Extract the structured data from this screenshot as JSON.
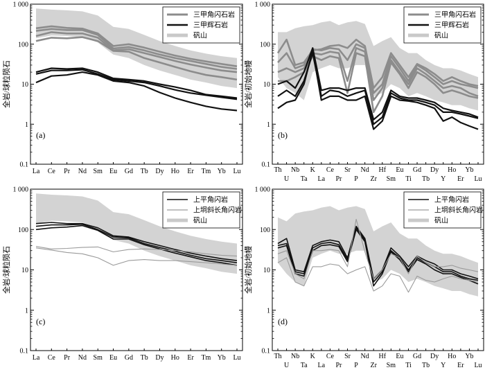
{
  "chart_data": [
    {
      "type": "line",
      "panel_label": "(a)",
      "ylabel": "全岩/球粒陨石",
      "yscale": "log",
      "ylim": [
        0.1,
        1000
      ],
      "yticks": [
        "0.1",
        "1",
        "10",
        "100",
        "1 000"
      ],
      "categories": [
        "La",
        "Ce",
        "Pr",
        "Nd",
        "Sm",
        "Eu",
        "Gd",
        "Tb",
        "Dy",
        "Ho",
        "Er",
        "Tm",
        "Yb",
        "Lu"
      ],
      "band": {
        "name": "矾山",
        "upper": [
          780,
          730,
          700,
          660,
          520,
          270,
          240,
          170,
          120,
          90,
          70,
          58,
          50,
          45
        ],
        "lower": [
          140,
          165,
          160,
          150,
          110,
          55,
          45,
          30,
          22,
          17,
          13,
          11,
          9,
          8
        ]
      },
      "series": [
        {
          "name": "三甲角闪石岩",
          "group": "gray",
          "values": [
            250,
            280,
            255,
            245,
            185,
            90,
            100,
            82,
            65,
            52,
            43,
            37,
            32,
            28
          ]
        },
        {
          "name": "",
          "group": "gray",
          "values": [
            215,
            240,
            225,
            225,
            170,
            78,
            85,
            70,
            55,
            45,
            38,
            32,
            27,
            24
          ]
        },
        {
          "name": "",
          "group": "gray",
          "values": [
            160,
            200,
            185,
            185,
            145,
            70,
            75,
            60,
            48,
            38,
            31,
            26,
            22,
            20
          ]
        },
        {
          "name": "",
          "group": "gray",
          "values": [
            120,
            145,
            140,
            150,
            120,
            68,
            65,
            45,
            35,
            27,
            21,
            17,
            15,
            13
          ]
        },
        {
          "name": "三甲辉石岩",
          "group": "black",
          "values": [
            20,
            25,
            24,
            25,
            20,
            14,
            13,
            12,
            10,
            8.5,
            7,
            5.5,
            5,
            4.5
          ]
        },
        {
          "name": "",
          "group": "black",
          "values": [
            18,
            22,
            22,
            23,
            18,
            13,
            12,
            11,
            9,
            7.2,
            6,
            5.3,
            4.7,
            4.2
          ]
        },
        {
          "name": "",
          "group": "black",
          "values": [
            11,
            16,
            17,
            20,
            17,
            12,
            11,
            9,
            6.2,
            4.5,
            3.5,
            2.8,
            2.4,
            2.2
          ]
        }
      ],
      "legend": [
        "三甲角闪石岩",
        "三甲辉石岩",
        "矾山"
      ]
    },
    {
      "type": "line",
      "panel_label": "(b)",
      "ylabel": "全岩/初始地幔",
      "yscale": "log",
      "ylim": [
        0.1,
        1000
      ],
      "yticks": [
        "0.1",
        "1",
        "10",
        "100",
        "1 000"
      ],
      "categories": [
        "Th",
        "U",
        "Nb",
        "Ta",
        "K",
        "La",
        "Ce",
        "Pr",
        "Sr",
        "P",
        "Nd",
        "Zr",
        "Hf",
        "Sm",
        "Eu",
        "Ti",
        "Gd",
        "Tb",
        "Dy",
        "Y",
        "Ho",
        "Er",
        "Yb",
        "Lu"
      ],
      "band": {
        "name": "矾山",
        "upper": [
          200,
          200,
          250,
          280,
          300,
          350,
          380,
          300,
          350,
          380,
          320,
          90,
          120,
          150,
          80,
          60,
          60,
          40,
          30,
          25,
          25,
          22,
          18,
          15
        ],
        "lower": [
          15,
          8,
          6,
          4,
          20,
          25,
          30,
          25,
          25,
          30,
          30,
          5,
          6,
          10,
          8,
          5,
          6,
          5,
          4,
          3.5,
          3,
          3,
          2.5,
          2.2
        ]
      },
      "series": [
        {
          "name": "三甲角闪石岩",
          "group": "gray",
          "values": [
            60,
            130,
            30,
            35,
            70,
            75,
            90,
            95,
            80,
            130,
            90,
            8,
            15,
            60,
            30,
            15,
            32,
            25,
            18,
            12,
            15,
            12,
            10,
            9
          ]
        },
        {
          "name": "",
          "group": "gray",
          "values": [
            35,
            60,
            25,
            30,
            75,
            70,
            80,
            75,
            40,
            100,
            80,
            6,
            10,
            50,
            25,
            12,
            30,
            22,
            15,
            10,
            12,
            10,
            9,
            8
          ]
        },
        {
          "name": "",
          "group": "gray",
          "values": [
            20,
            25,
            20,
            25,
            60,
            55,
            65,
            60,
            12,
            80,
            65,
            4,
            8,
            40,
            20,
            10,
            25,
            18,
            12,
            8,
            9,
            8,
            6,
            5
          ]
        },
        {
          "name": "",
          "group": "gray",
          "values": [
            12,
            12,
            15,
            20,
            50,
            40,
            50,
            45,
            6,
            60,
            50,
            2,
            5,
            35,
            18,
            8,
            20,
            15,
            10,
            6,
            7,
            6,
            5,
            4.5
          ]
        },
        {
          "name": "三甲辉石岩",
          "group": "black",
          "values": [
            10,
            12,
            8,
            20,
            80,
            7,
            8,
            8,
            7,
            8,
            8,
            1.3,
            2,
            7,
            5,
            4.5,
            4.5,
            4,
            3.5,
            2.5,
            2.2,
            2,
            1.8,
            1.5
          ]
        },
        {
          "name": "",
          "group": "black",
          "values": [
            5,
            7,
            5,
            12,
            60,
            5,
            7,
            6.5,
            5,
            6,
            7,
            1,
            1.5,
            6,
            4.5,
            4,
            4,
            3.5,
            3,
            2,
            2,
            1.8,
            1.6,
            1.4
          ]
        },
        {
          "name": "",
          "group": "black",
          "values": [
            2.5,
            3.5,
            4,
            10,
            70,
            4,
            5,
            5,
            4,
            4,
            5,
            0.75,
            1.2,
            5,
            4,
            3.8,
            3.5,
            3,
            2.5,
            1.2,
            1.5,
            1.1,
            0.9,
            0.75
          ]
        }
      ],
      "legend": [
        "三甲角闪石岩",
        "三甲辉石岩",
        "矾山"
      ]
    },
    {
      "type": "line",
      "panel_label": "(c)",
      "ylabel": "全岩/球粒陨石",
      "yscale": "log",
      "ylim": [
        0.1,
        1000
      ],
      "yticks": [
        "0.1",
        "1",
        "10",
        "100",
        "1 000"
      ],
      "categories": [
        "La",
        "Ce",
        "Pr",
        "Nd",
        "Sm",
        "Eu",
        "Gd",
        "Tb",
        "Dy",
        "Ho",
        "Er",
        "Tm",
        "Yb",
        "Lu"
      ],
      "band": {
        "name": "矾山",
        "upper": [
          780,
          730,
          700,
          660,
          520,
          270,
          240,
          170,
          120,
          90,
          70,
          58,
          50,
          45
        ],
        "lower": [
          140,
          165,
          160,
          150,
          110,
          55,
          45,
          30,
          22,
          17,
          13,
          11,
          9,
          8
        ]
      },
      "series": [
        {
          "name": "上平角闪岩",
          "group": "black",
          "values": [
            140,
            150,
            140,
            140,
            110,
            70,
            65,
            50,
            40,
            32,
            26,
            22,
            19,
            17
          ]
        },
        {
          "name": "",
          "group": "black",
          "values": [
            120,
            130,
            130,
            135,
            100,
            65,
            62,
            45,
            36,
            29,
            23,
            19,
            17,
            15
          ]
        },
        {
          "name": "",
          "group": "black",
          "values": [
            100,
            110,
            115,
            125,
            95,
            58,
            58,
            42,
            33,
            26,
            21,
            17,
            15,
            13
          ]
        },
        {
          "name": "上垌斜长角闪岩",
          "group": "gray",
          "values": [
            38,
            33,
            34,
            36,
            37,
            28,
            32,
            33,
            32,
            30,
            28,
            25,
            23,
            22
          ]
        },
        {
          "name": "",
          "group": "gray",
          "values": [
            35,
            31,
            27,
            25,
            20,
            13,
            17,
            18,
            17,
            17,
            16,
            15,
            14,
            13
          ]
        }
      ],
      "legend": [
        "上平角闪岩",
        "上垌斜长角闪岩",
        "矾山"
      ]
    },
    {
      "type": "line",
      "panel_label": "(d)",
      "ylabel": "全岩/初始地幔",
      "yscale": "log",
      "ylim": [
        0.1,
        1000
      ],
      "yticks": [
        "0.1",
        "1",
        "10",
        "100",
        "1 000"
      ],
      "categories": [
        "Th",
        "U",
        "Nb",
        "Ta",
        "K",
        "La",
        "Ce",
        "Pr",
        "Sr",
        "P",
        "Nd",
        "Zr",
        "Hf",
        "Sm",
        "Eu",
        "Ti",
        "Gd",
        "Tb",
        "Dy",
        "Y",
        "Ho",
        "Er",
        "Yb",
        "Lu"
      ],
      "band": {
        "name": "矾山",
        "upper": [
          200,
          160,
          250,
          280,
          300,
          350,
          380,
          300,
          350,
          380,
          320,
          90,
          120,
          150,
          80,
          60,
          60,
          40,
          30,
          25,
          25,
          22,
          18,
          15
        ],
        "lower": [
          15,
          8,
          5,
          4,
          20,
          25,
          30,
          25,
          25,
          30,
          30,
          5,
          6,
          10,
          8,
          5,
          6,
          5,
          4,
          3.5,
          3,
          3,
          2.5,
          2.2
        ]
      },
      "series": [
        {
          "name": "上平角闪岩",
          "group": "black",
          "values": [
            45,
            60,
            10,
            9,
            40,
            50,
            55,
            50,
            20,
            120,
            60,
            6,
            10,
            35,
            22,
            12,
            22,
            17,
            14,
            10,
            10,
            8,
            7,
            6
          ]
        },
        {
          "name": "",
          "group": "black",
          "values": [
            40,
            45,
            9,
            8,
            35,
            45,
            48,
            42,
            18,
            110,
            55,
            5,
            9,
            30,
            20,
            10,
            20,
            15,
            12,
            9,
            9,
            7,
            6,
            5.5
          ]
        },
        {
          "name": "",
          "group": "black",
          "values": [
            35,
            40,
            8,
            7,
            30,
            40,
            42,
            38,
            16,
            100,
            50,
            4,
            8,
            28,
            18,
            9,
            18,
            14,
            10,
            8,
            8,
            6.5,
            5.5,
            4.5
          ]
        },
        {
          "name": "上垌斜长角闪岩",
          "group": "gray",
          "values": [
            25,
            30,
            8,
            6,
            30,
            30,
            32,
            30,
            12,
            180,
            28,
            6,
            10,
            25,
            20,
            8,
            22,
            15,
            12,
            12,
            13,
            11,
            10,
            9
          ]
        },
        {
          "name": "",
          "group": "gray",
          "values": [
            15,
            20,
            5,
            4,
            12,
            12,
            14,
            13,
            8,
            10,
            12,
            3,
            4,
            8,
            7,
            2.8,
            7,
            5.5,
            5,
            6,
            7,
            6,
            5.5,
            5
          ]
        }
      ],
      "legend": [
        "上平角闪岩",
        "上垌斜长角闪岩",
        "矾山"
      ]
    }
  ]
}
